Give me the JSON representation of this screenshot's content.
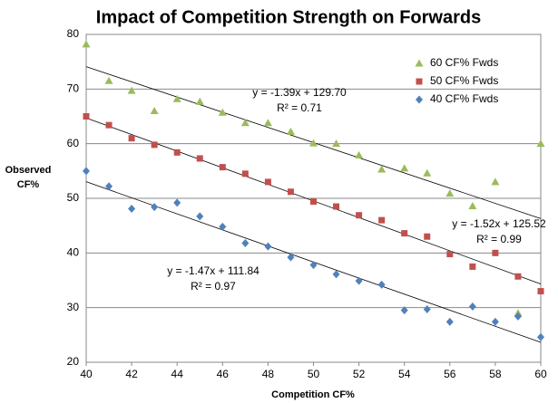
{
  "chart_data": {
    "type": "scatter",
    "title": "Impact of Competition Strength on Forwards",
    "x_label": "Competition CF%",
    "y_label": "Observed CF%",
    "x": [
      40,
      41,
      42,
      43,
      44,
      45,
      46,
      47,
      48,
      49,
      50,
      51,
      52,
      53,
      54,
      55,
      56,
      57,
      58,
      59,
      60
    ],
    "series": [
      {
        "name": "60 CF% Fwds",
        "color": "#9bbb59",
        "marker": "triangle",
        "values": [
          78.2,
          71.5,
          69.7,
          66,
          68.2,
          67.7,
          65.7,
          63.8,
          63.8,
          62.2,
          60.1,
          60,
          57.9,
          55.3,
          55.5,
          54.6,
          50.9,
          48.6,
          53,
          29,
          60
        ],
        "trendline": {
          "slope": -1.39,
          "intercept": 129.7,
          "label": "y = -1.39x + 129.70",
          "r2_label": "R² = 0.71"
        }
      },
      {
        "name": "50 CF% Fwds",
        "color": "#c0504d",
        "marker": "square",
        "values": [
          65,
          63.4,
          61,
          59.8,
          58.4,
          57.3,
          55.7,
          54.5,
          53,
          51.2,
          49.4,
          48.5,
          46.9,
          46,
          43.6,
          43,
          39.8,
          37.5,
          40,
          35.7,
          33
        ],
        "trendline": {
          "slope": -1.52,
          "intercept": 125.52,
          "label": "y = -1.52x + 125.52",
          "r2_label": "R² = 0.99"
        }
      },
      {
        "name": "40 CF% Fwds",
        "color": "#4f81bd",
        "marker": "diamond",
        "values": [
          55,
          52.2,
          48.1,
          48.4,
          49.2,
          46.7,
          44.8,
          41.8,
          41.2,
          39.2,
          37.8,
          36.1,
          34.9,
          34.2,
          29.5,
          29.7,
          27.4,
          30.2,
          27.4,
          28.4,
          24.6
        ],
        "trendline": {
          "slope": -1.47,
          "intercept": 111.84,
          "label": "y = -1.47x + 111.84",
          "r2_label": "R² = 0.97"
        }
      }
    ],
    "xlim": [
      40,
      60
    ],
    "xticks": [
      40,
      42,
      44,
      46,
      48,
      50,
      52,
      54,
      56,
      58,
      60
    ],
    "ylim": [
      20,
      80
    ],
    "yticks": [
      20,
      30,
      40,
      50,
      60,
      70,
      80
    ],
    "grid": true,
    "legend": "upper right"
  }
}
